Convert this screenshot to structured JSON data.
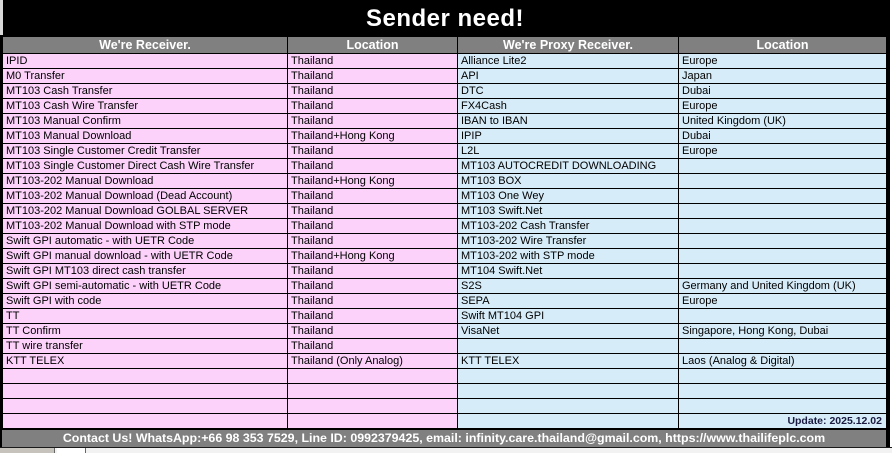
{
  "title": "Sender need!",
  "columns": [
    "We're Receiver.",
    "Location",
    "We're Proxy Receiver.",
    "Location"
  ],
  "rows": [
    [
      "IPID",
      "Thailand",
      "Alliance Lite2",
      "Europe"
    ],
    [
      "M0 Transfer",
      "Thailand",
      "API",
      "Japan"
    ],
    [
      "MT103 Cash Transfer",
      "Thailand",
      "DTC",
      "Dubai"
    ],
    [
      "MT103 Cash Wire Transfer",
      "Thailand",
      "FX4Cash",
      "Europe"
    ],
    [
      "MT103 Manual Confirm",
      "Thailand",
      "IBAN to IBAN",
      "United Kingdom (UK)"
    ],
    [
      "MT103 Manual Download",
      "Thailand+Hong Kong",
      "IPIP",
      "Dubai"
    ],
    [
      "MT103 Single Customer Credit Transfer",
      "Thailand",
      "L2L",
      "Europe"
    ],
    [
      "MT103 Single Customer Direct Cash Wire Transfer",
      "Thailand",
      "MT103 AUTOCREDIT DOWNLOADING",
      ""
    ],
    [
      "MT103-202 Manual Download",
      "Thailand+Hong Kong",
      "MT103 BOX",
      ""
    ],
    [
      "MT103-202 Manual Download (Dead Account)",
      "Thailand",
      "MT103 One Wey",
      ""
    ],
    [
      "MT103-202 Manual Download GOLBAL SERVER",
      "Thailand",
      "MT103 Swift.Net",
      ""
    ],
    [
      "MT103-202 Manual Download with STP mode",
      "Thailand",
      "MT103-202 Cash Transfer",
      ""
    ],
    [
      "Swift GPI automatic - with UETR Code",
      "Thailand",
      "MT103-202 Wire Transfer",
      ""
    ],
    [
      "Swift GPI manual download - with UETR Code",
      "Thailand+Hong Kong",
      "MT103-202 with STP mode",
      ""
    ],
    [
      "Swift GPI MT103 direct cash transfer",
      "Thailand",
      "MT104 Swift.Net",
      ""
    ],
    [
      "Swift GPI semi-automatic - with UETR Code",
      "Thailand",
      "S2S",
      "Germany and United Kingdom (UK)"
    ],
    [
      "Swift GPI with code",
      "Thailand",
      "SEPA",
      "Europe"
    ],
    [
      "TT",
      "Thailand",
      "Swift MT104 GPI",
      ""
    ],
    [
      "TT Confirm",
      "Thailand",
      "VisaNet",
      "Singapore, Hong Kong, Dubai"
    ],
    [
      "TT wire transfer",
      "Thailand",
      "",
      ""
    ],
    [
      "KTT TELEX",
      "Thailand (Only Analog)",
      "KTT TELEX",
      "Laos (Analog & Digital)"
    ],
    [
      "",
      "",
      "",
      ""
    ],
    [
      "",
      "",
      "",
      ""
    ],
    [
      "",
      "",
      "",
      ""
    ]
  ],
  "update_note": "Update: 2025.12.02",
  "footer": "Contact Us! WhatsApp:+66 98 353 7529, Line ID: 0992379425, email: infinity.care.thailand@gmail.com,  https://www.thailifeplc.com",
  "colors": {
    "receiver_bg": "#fcd2fb",
    "proxy_bg": "#d6ecf8",
    "header_bg": "#808080",
    "title_bg": "#000000"
  }
}
